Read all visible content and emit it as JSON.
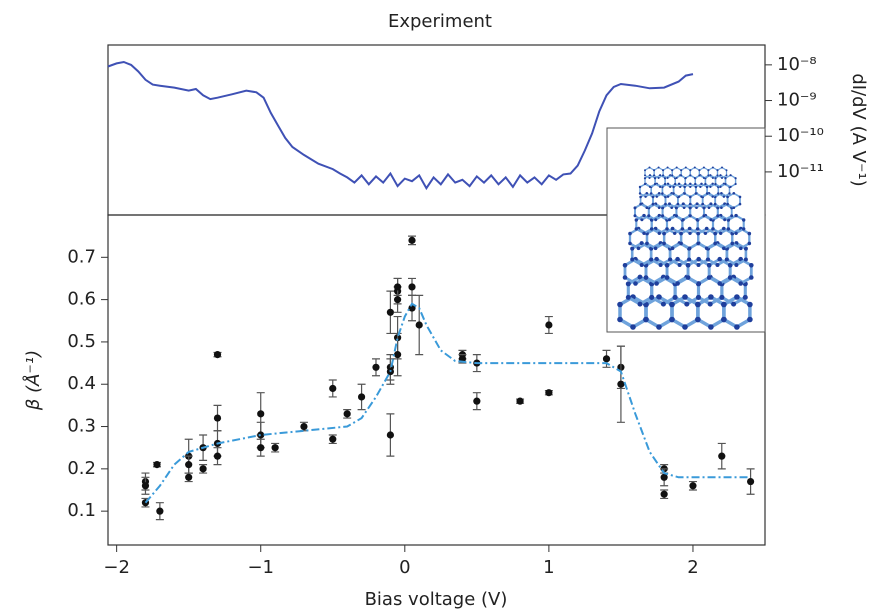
{
  "chart_data": [
    {
      "type": "line",
      "title": "Experiment",
      "y2label": "dI/dV (A V⁻¹)",
      "color": "#3f51b5",
      "xlim": [
        -2.06,
        2.5
      ],
      "y2lim": [
        6.2e-13,
        3.6e-08
      ],
      "y2log": true,
      "y2ticks": [
        {
          "value": 1e-08,
          "label": "10⁻⁸"
        },
        {
          "value": 1e-09,
          "label": "10⁻⁹"
        },
        {
          "value": 1e-10,
          "label": "10⁻¹⁰"
        },
        {
          "value": 1e-11,
          "label": "10⁻¹¹"
        }
      ],
      "x": [
        -2.06,
        -2.0,
        -1.95,
        -1.9,
        -1.85,
        -1.8,
        -1.75,
        -1.7,
        -1.6,
        -1.5,
        -1.45,
        -1.4,
        -1.35,
        -1.3,
        -1.2,
        -1.1,
        -1.03,
        -0.98,
        -0.93,
        -0.88,
        -0.83,
        -0.78,
        -0.7,
        -0.6,
        -0.5,
        -0.45,
        -0.4,
        -0.35,
        -0.3,
        -0.25,
        -0.2,
        -0.15,
        -0.1,
        -0.05,
        0.0,
        0.05,
        0.1,
        0.15,
        0.2,
        0.25,
        0.3,
        0.35,
        0.4,
        0.45,
        0.5,
        0.55,
        0.6,
        0.65,
        0.7,
        0.75,
        0.8,
        0.85,
        0.9,
        0.95,
        1.0,
        1.05,
        1.1,
        1.15,
        1.2,
        1.25,
        1.3,
        1.35,
        1.4,
        1.45,
        1.5,
        1.6,
        1.7,
        1.8,
        1.9,
        1.95,
        2.0
      ],
      "values": [
        9e-09,
        1.1e-08,
        1.2e-08,
        1e-08,
        6.5e-09,
        3.8e-09,
        2.8e-09,
        2.6e-09,
        2.3e-09,
        1.9e-09,
        2.1e-09,
        1.4e-09,
        1.1e-09,
        1.2e-09,
        1.5e-09,
        1.9e-09,
        1.7e-09,
        1.2e-09,
        4.5e-10,
        2e-10,
        9e-11,
        5e-11,
        3e-11,
        1.7e-11,
        1.2e-11,
        9e-12,
        7e-12,
        5e-12,
        8e-12,
        4.5e-12,
        7.5e-12,
        5e-12,
        9e-12,
        4e-12,
        6.5e-12,
        5.5e-12,
        8e-12,
        3.5e-12,
        7e-12,
        4.5e-12,
        8.5e-12,
        5e-12,
        6e-12,
        4e-12,
        7.5e-12,
        5e-12,
        8e-12,
        4.5e-12,
        7e-12,
        3.8e-12,
        8e-12,
        5e-12,
        7e-12,
        4.5e-12,
        8e-12,
        6e-12,
        8.5e-12,
        9e-12,
        1.5e-11,
        4e-11,
        1.2e-10,
        5e-10,
        1.4e-09,
        2.4e-09,
        2.9e-09,
        2.6e-09,
        2.2e-09,
        2.3e-09,
        3.4e-09,
        5e-09,
        5.5e-09
      ]
    },
    {
      "type": "scatter",
      "xlabel": "Bias voltage (V)",
      "ylabel": "β (Å⁻¹)",
      "xlim": [
        -2.06,
        2.5
      ],
      "ylim": [
        0.02,
        0.8
      ],
      "xticks": [
        {
          "value": -2,
          "label": "−2"
        },
        {
          "value": -1,
          "label": "−1"
        },
        0,
        1,
        2
      ],
      "yticks": [
        0.1,
        0.2,
        0.3,
        0.4,
        0.5,
        0.6,
        0.7
      ],
      "series": [
        {
          "color": "#111111",
          "x": [
            -1.8,
            -1.8,
            -1.8,
            -1.72,
            -1.7,
            -1.5,
            -1.5,
            -1.5,
            -1.4,
            -1.4,
            -1.3,
            -1.3,
            -1.3,
            -1.3,
            -1.0,
            -1.0,
            -1.0,
            -0.9,
            -0.7,
            -0.5,
            -0.5,
            -0.4,
            -0.3,
            -0.2,
            -0.1,
            -0.1,
            -0.1,
            -0.1,
            -0.05,
            -0.05,
            -0.05,
            -0.05,
            -0.05,
            0.05,
            0.05,
            0.05,
            0.1,
            0.4,
            0.4,
            0.5,
            0.5,
            0.8,
            1.0,
            1.0,
            1.4,
            1.5,
            1.5,
            1.8,
            1.8,
            1.8,
            2.0,
            2.2,
            2.4
          ],
          "values": [
            0.17,
            0.16,
            0.12,
            0.21,
            0.1,
            0.23,
            0.21,
            0.18,
            0.25,
            0.2,
            0.47,
            0.32,
            0.26,
            0.23,
            0.33,
            0.28,
            0.25,
            0.25,
            0.3,
            0.39,
            0.27,
            0.33,
            0.37,
            0.44,
            0.44,
            0.43,
            0.57,
            0.28,
            0.62,
            0.6,
            0.51,
            0.47,
            0.63,
            0.74,
            0.63,
            0.58,
            0.54,
            0.47,
            0.46,
            0.45,
            0.36,
            0.36,
            0.54,
            0.38,
            0.46,
            0.44,
            0.4,
            0.2,
            0.18,
            0.14,
            0.16,
            0.23,
            0.17
          ],
          "errors": [
            0.02,
            0.02,
            0.01,
            0.005,
            0.02,
            0.04,
            0.02,
            0.01,
            0.03,
            0.01,
            0.005,
            0.03,
            0.03,
            0.02,
            0.05,
            0.03,
            0.02,
            0.01,
            0.01,
            0.02,
            0.01,
            0.01,
            0.03,
            0.02,
            0.03,
            0.03,
            0.05,
            0.05,
            0.03,
            0.03,
            0.05,
            0.05,
            0.02,
            0.01,
            0.02,
            0.03,
            0.07,
            0.01,
            0.01,
            0.02,
            0.02,
            0.005,
            0.02,
            0.005,
            0.02,
            0.05,
            0.09,
            0.01,
            0.02,
            0.01,
            0.01,
            0.03,
            0.03
          ]
        },
        {
          "color": "#3a9ad9",
          "dash": "dashdot",
          "x": [
            -1.8,
            -1.7,
            -1.6,
            -1.5,
            -1.3,
            -1.0,
            -0.7,
            -0.4,
            -0.3,
            -0.2,
            -0.1,
            -0.05,
            0.0,
            0.05,
            0.1,
            0.15,
            0.25,
            0.35,
            0.5,
            1.0,
            1.4,
            1.5,
            1.6,
            1.7,
            1.8,
            1.9,
            2.4
          ],
          "values": [
            0.12,
            0.16,
            0.21,
            0.24,
            0.26,
            0.28,
            0.29,
            0.3,
            0.32,
            0.37,
            0.43,
            0.51,
            0.56,
            0.59,
            0.58,
            0.54,
            0.48,
            0.455,
            0.45,
            0.45,
            0.45,
            0.43,
            0.33,
            0.24,
            0.19,
            0.18,
            0.18
          ]
        }
      ]
    }
  ]
}
